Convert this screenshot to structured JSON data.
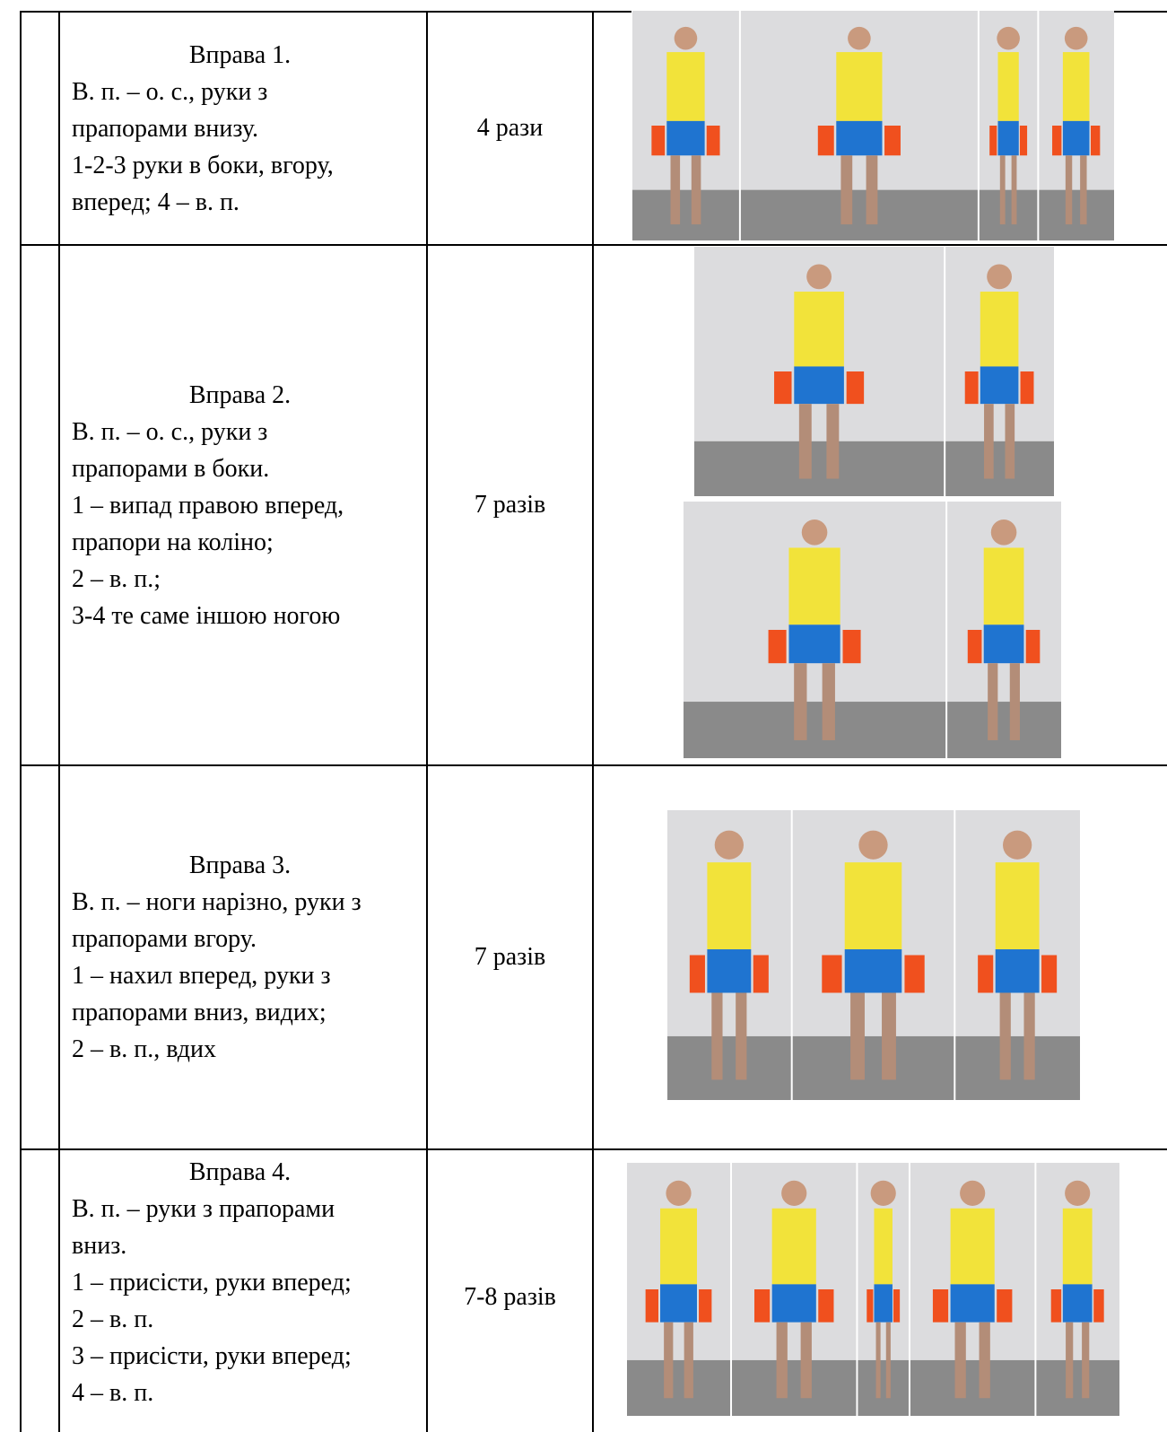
{
  "table": {
    "rows": [
      {
        "exercise": {
          "title": "Вправа 1.",
          "lines": [
            "В. п. – о. с., руки з",
            "прапорами внизу.",
            "1-2-3 руки в боки, вгору,",
            "вперед; 4 – в. п."
          ]
        },
        "reps": "4 рази"
      },
      {
        "exercise": {
          "title": "Вправа 2.",
          "lines": [
            "В. п. – о. с., руки з",
            "прапорами в боки.",
            "1 – випад правою вперед,",
            "прапори на коліно;",
            "2 – в. п.;",
            "3-4 те саме іншою ногою"
          ]
        },
        "reps": "7 разів"
      },
      {
        "exercise": {
          "title": "Вправа 3.",
          "lines": [
            "В. п. – ноги нарізно, руки з",
            "прапорами вгору.",
            "1 – нахил вперед, руки з",
            "прапорами вниз, видих;",
            "2 – в. п., вдих"
          ]
        },
        "reps": "7 разів"
      },
      {
        "exercise": {
          "title": "Вправа 4.",
          "lines": [
            "В. п. – руки з прапорами",
            "вниз.",
            "1 – присісти, руки вперед;",
            "2 – в. п.",
            "3 – присісти, руки вперед;",
            "4 – в. п."
          ]
        },
        "reps": "7-8 разів"
      }
    ]
  }
}
